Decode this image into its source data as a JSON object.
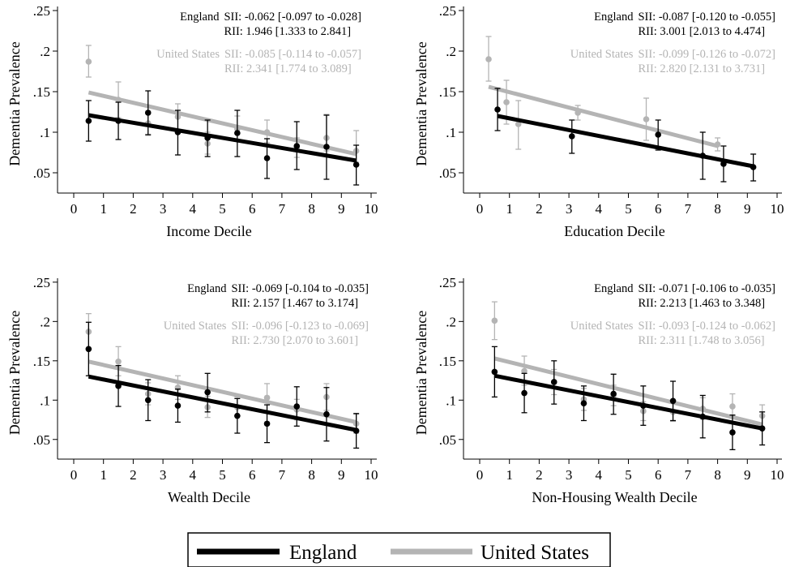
{
  "colors": {
    "england": "#000000",
    "us": "#b4b4b4",
    "axis": "#000000"
  },
  "legend": {
    "entries": [
      {
        "label": "England",
        "color": "#000000"
      },
      {
        "label": "United States",
        "color": "#b4b4b4"
      }
    ]
  },
  "chart_data": [
    {
      "type": "scatter",
      "xlabel": "Income Decile",
      "ylabel": "Dementia Prevalence",
      "xlim": [
        0,
        10
      ],
      "ylim": [
        0.025,
        0.255
      ],
      "xticks": [
        "0",
        "1",
        "2",
        "3",
        "4",
        "5",
        "6",
        "7",
        "8",
        "9",
        "10"
      ],
      "yticks": [
        ".05",
        ".1",
        ".15",
        ".2",
        ".25"
      ],
      "annotation": {
        "england": {
          "name": "England",
          "sii": "SII: -0.062 [-0.097 to -0.028]",
          "rii": "RII: 1.946 [1.333 to 2.841]"
        },
        "us": {
          "name": "United States",
          "sii": "SII: -0.085 [-0.114 to -0.057]",
          "rii": "RII: 2.341 [1.774 to 3.089]"
        }
      },
      "series": [
        {
          "name": "England",
          "color": "#000000",
          "points": [
            {
              "x": 0.5,
              "y": 0.114,
              "lo": 0.089,
              "hi": 0.139
            },
            {
              "x": 1.5,
              "y": 0.114,
              "lo": 0.091,
              "hi": 0.137
            },
            {
              "x": 2.5,
              "y": 0.124,
              "lo": 0.097,
              "hi": 0.151
            },
            {
              "x": 3.5,
              "y": 0.1,
              "lo": 0.072,
              "hi": 0.127
            },
            {
              "x": 4.5,
              "y": 0.093,
              "lo": 0.07,
              "hi": 0.115
            },
            {
              "x": 5.5,
              "y": 0.099,
              "lo": 0.07,
              "hi": 0.127
            },
            {
              "x": 6.5,
              "y": 0.068,
              "lo": 0.043,
              "hi": 0.092
            },
            {
              "x": 7.5,
              "y": 0.083,
              "lo": 0.054,
              "hi": 0.113
            },
            {
              "x": 8.5,
              "y": 0.082,
              "lo": 0.042,
              "hi": 0.121
            },
            {
              "x": 9.5,
              "y": 0.06,
              "lo": 0.035,
              "hi": 0.084
            }
          ],
          "fit": [
            0.5,
            0.121,
            9.5,
            0.065
          ]
        },
        {
          "name": "United States",
          "color": "#b4b4b4",
          "points": [
            {
              "x": 0.5,
              "y": 0.187,
              "lo": 0.168,
              "hi": 0.207
            },
            {
              "x": 1.5,
              "y": 0.14,
              "lo": 0.118,
              "hi": 0.162
            },
            {
              "x": 2.5,
              "y": 0.111,
              "lo": 0.096,
              "hi": 0.126
            },
            {
              "x": 3.5,
              "y": 0.119,
              "lo": 0.103,
              "hi": 0.135
            },
            {
              "x": 4.5,
              "y": 0.086,
              "lo": 0.073,
              "hi": 0.1
            },
            {
              "x": 5.5,
              "y": 0.104,
              "lo": 0.089,
              "hi": 0.12
            },
            {
              "x": 6.5,
              "y": 0.1,
              "lo": 0.087,
              "hi": 0.115
            },
            {
              "x": 7.5,
              "y": 0.081,
              "lo": 0.069,
              "hi": 0.093
            },
            {
              "x": 8.5,
              "y": 0.093,
              "lo": 0.077,
              "hi": 0.122
            },
            {
              "x": 9.5,
              "y": 0.077,
              "lo": 0.063,
              "hi": 0.102
            }
          ],
          "fit": [
            0.5,
            0.149,
            9.5,
            0.073
          ]
        }
      ]
    },
    {
      "type": "scatter",
      "xlabel": "Education Decile",
      "ylabel": "Dementia Prevalence",
      "xlim": [
        0,
        10
      ],
      "ylim": [
        0.025,
        0.255
      ],
      "xticks": [
        "0",
        "1",
        "2",
        "3",
        "4",
        "5",
        "6",
        "7",
        "8",
        "9",
        "10"
      ],
      "yticks": [
        ".05",
        ".1",
        ".15",
        ".2",
        ".25"
      ],
      "annotation": {
        "england": {
          "name": "England",
          "sii": "SII: -0.087 [-0.120 to -0.055]",
          "rii": "RII: 3.001 [2.013 to 4.474]"
        },
        "us": {
          "name": "United States",
          "sii": "SII: -0.099 [-0.126 to -0.072]",
          "rii": "RII: 2.820 [2.131 to 3.731]"
        }
      },
      "series": [
        {
          "name": "England",
          "color": "#000000",
          "points": [
            {
              "x": 0.6,
              "y": 0.128,
              "lo": 0.102,
              "hi": 0.154
            },
            {
              "x": 3.1,
              "y": 0.095,
              "lo": 0.074,
              "hi": 0.115
            },
            {
              "x": 6.0,
              "y": 0.097,
              "lo": 0.078,
              "hi": 0.115
            },
            {
              "x": 7.5,
              "y": 0.071,
              "lo": 0.042,
              "hi": 0.1
            },
            {
              "x": 8.2,
              "y": 0.061,
              "lo": 0.039,
              "hi": 0.083
            },
            {
              "x": 9.2,
              "y": 0.057,
              "lo": 0.04,
              "hi": 0.073
            }
          ],
          "fit": [
            0.6,
            0.12,
            9.2,
            0.058
          ]
        },
        {
          "name": "United States",
          "color": "#b4b4b4",
          "points": [
            {
              "x": 0.3,
              "y": 0.19,
              "lo": 0.163,
              "hi": 0.218
            },
            {
              "x": 0.9,
              "y": 0.137,
              "lo": 0.11,
              "hi": 0.164
            },
            {
              "x": 1.3,
              "y": 0.11,
              "lo": 0.079,
              "hi": 0.139
            },
            {
              "x": 3.3,
              "y": 0.124,
              "lo": 0.115,
              "hi": 0.133
            },
            {
              "x": 5.6,
              "y": 0.116,
              "lo": 0.09,
              "hi": 0.142
            },
            {
              "x": 8.0,
              "y": 0.085,
              "lo": 0.077,
              "hi": 0.093
            }
          ],
          "fit": [
            0.3,
            0.156,
            8.0,
            0.083
          ]
        }
      ]
    },
    {
      "type": "scatter",
      "xlabel": "Wealth Decile",
      "ylabel": "Dementia Prevalence",
      "xlim": [
        0,
        10
      ],
      "ylim": [
        0.025,
        0.255
      ],
      "xticks": [
        "0",
        "1",
        "2",
        "3",
        "4",
        "5",
        "6",
        "7",
        "8",
        "9",
        "10"
      ],
      "yticks": [
        ".05",
        ".1",
        ".15",
        ".2",
        ".25"
      ],
      "annotation": {
        "england": {
          "name": "England",
          "sii": "SII: -0.069 [-0.104 to -0.035]",
          "rii": "RII: 2.157 [1.467 to 3.174]"
        },
        "us": {
          "name": "United States",
          "sii": "SII: -0.096 [-0.123 to -0.069]",
          "rii": "RII: 2.730 [2.070 to 3.601]"
        }
      },
      "series": [
        {
          "name": "England",
          "color": "#000000",
          "points": [
            {
              "x": 0.5,
              "y": 0.165,
              "lo": 0.131,
              "hi": 0.199
            },
            {
              "x": 1.5,
              "y": 0.118,
              "lo": 0.092,
              "hi": 0.144
            },
            {
              "x": 2.5,
              "y": 0.1,
              "lo": 0.074,
              "hi": 0.126
            },
            {
              "x": 3.5,
              "y": 0.093,
              "lo": 0.072,
              "hi": 0.114
            },
            {
              "x": 4.5,
              "y": 0.11,
              "lo": 0.085,
              "hi": 0.134
            },
            {
              "x": 5.5,
              "y": 0.08,
              "lo": 0.058,
              "hi": 0.102
            },
            {
              "x": 6.5,
              "y": 0.07,
              "lo": 0.046,
              "hi": 0.094
            },
            {
              "x": 7.5,
              "y": 0.092,
              "lo": 0.067,
              "hi": 0.117
            },
            {
              "x": 8.5,
              "y": 0.082,
              "lo": 0.048,
              "hi": 0.116
            },
            {
              "x": 9.5,
              "y": 0.061,
              "lo": 0.039,
              "hi": 0.083
            }
          ],
          "fit": [
            0.5,
            0.13,
            9.5,
            0.062
          ]
        },
        {
          "name": "United States",
          "color": "#b4b4b4",
          "points": [
            {
              "x": 0.5,
              "y": 0.187,
              "lo": 0.164,
              "hi": 0.21
            },
            {
              "x": 1.5,
              "y": 0.149,
              "lo": 0.131,
              "hi": 0.168
            },
            {
              "x": 2.5,
              "y": 0.108,
              "lo": 0.094,
              "hi": 0.122
            },
            {
              "x": 3.5,
              "y": 0.116,
              "lo": 0.101,
              "hi": 0.131
            },
            {
              "x": 4.5,
              "y": 0.091,
              "lo": 0.078,
              "hi": 0.105
            },
            {
              "x": 5.5,
              "y": 0.091,
              "lo": 0.079,
              "hi": 0.104
            },
            {
              "x": 6.5,
              "y": 0.103,
              "lo": 0.084,
              "hi": 0.121
            },
            {
              "x": 7.5,
              "y": 0.088,
              "lo": 0.075,
              "hi": 0.101
            },
            {
              "x": 8.5,
              "y": 0.104,
              "lo": 0.087,
              "hi": 0.121
            },
            {
              "x": 9.5,
              "y": 0.07,
              "lo": 0.058,
              "hi": 0.082
            }
          ],
          "fit": [
            0.5,
            0.149,
            9.5,
            0.072
          ]
        }
      ]
    },
    {
      "type": "scatter",
      "xlabel": "Non-Housing Wealth Decile",
      "ylabel": "Dementia Prevalence",
      "xlim": [
        0,
        10
      ],
      "ylim": [
        0.025,
        0.255
      ],
      "xticks": [
        "0",
        "1",
        "2",
        "3",
        "4",
        "5",
        "6",
        "7",
        "8",
        "9",
        "10"
      ],
      "yticks": [
        ".05",
        ".1",
        ".15",
        ".2",
        ".25"
      ],
      "annotation": {
        "england": {
          "name": "England",
          "sii": "SII: -0.071 [-0.106 to -0.035]",
          "rii": "RII: 2.213 [1.463 to 3.348]"
        },
        "us": {
          "name": "United States",
          "sii": "SII: -0.093 [-0.124 to -0.062]",
          "rii": "RII: 2.311 [1.748 to 3.056]"
        }
      },
      "series": [
        {
          "name": "England",
          "color": "#000000",
          "points": [
            {
              "x": 0.5,
              "y": 0.136,
              "lo": 0.104,
              "hi": 0.168
            },
            {
              "x": 1.5,
              "y": 0.109,
              "lo": 0.084,
              "hi": 0.134
            },
            {
              "x": 2.5,
              "y": 0.123,
              "lo": 0.095,
              "hi": 0.15
            },
            {
              "x": 3.5,
              "y": 0.096,
              "lo": 0.074,
              "hi": 0.118
            },
            {
              "x": 4.5,
              "y": 0.108,
              "lo": 0.082,
              "hi": 0.133
            },
            {
              "x": 5.5,
              "y": 0.093,
              "lo": 0.068,
              "hi": 0.118
            },
            {
              "x": 6.5,
              "y": 0.099,
              "lo": 0.074,
              "hi": 0.124
            },
            {
              "x": 7.5,
              "y": 0.079,
              "lo": 0.052,
              "hi": 0.106
            },
            {
              "x": 8.5,
              "y": 0.059,
              "lo": 0.037,
              "hi": 0.081
            },
            {
              "x": 9.5,
              "y": 0.064,
              "lo": 0.043,
              "hi": 0.085
            }
          ],
          "fit": [
            0.5,
            0.131,
            9.5,
            0.064
          ]
        },
        {
          "name": "United States",
          "color": "#b4b4b4",
          "points": [
            {
              "x": 0.5,
              "y": 0.201,
              "lo": 0.177,
              "hi": 0.225
            },
            {
              "x": 1.5,
              "y": 0.137,
              "lo": 0.119,
              "hi": 0.156
            },
            {
              "x": 2.5,
              "y": 0.123,
              "lo": 0.107,
              "hi": 0.139
            },
            {
              "x": 3.5,
              "y": 0.101,
              "lo": 0.087,
              "hi": 0.115
            },
            {
              "x": 4.5,
              "y": 0.106,
              "lo": 0.093,
              "hi": 0.119
            },
            {
              "x": 5.5,
              "y": 0.086,
              "lo": 0.074,
              "hi": 0.098
            },
            {
              "x": 6.5,
              "y": 0.085,
              "lo": 0.073,
              "hi": 0.097
            },
            {
              "x": 7.5,
              "y": 0.089,
              "lo": 0.076,
              "hi": 0.103
            },
            {
              "x": 8.5,
              "y": 0.092,
              "lo": 0.077,
              "hi": 0.108
            },
            {
              "x": 9.5,
              "y": 0.08,
              "lo": 0.066,
              "hi": 0.094
            }
          ],
          "fit": [
            0.5,
            0.153,
            9.5,
            0.069
          ]
        }
      ]
    }
  ]
}
